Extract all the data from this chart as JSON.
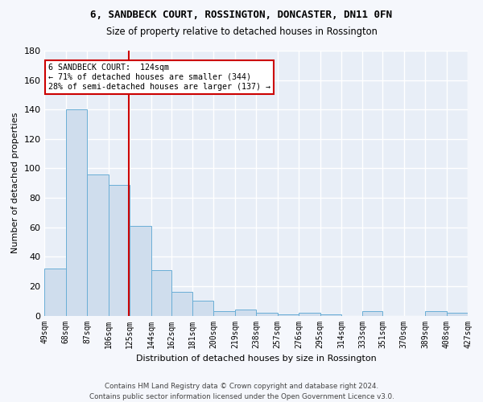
{
  "title": "6, SANDBECK COURT, ROSSINGTON, DONCASTER, DN11 0FN",
  "subtitle": "Size of property relative to detached houses in Rossington",
  "xlabel": "Distribution of detached houses by size in Rossington",
  "ylabel": "Number of detached properties",
  "bar_edges": [
    49,
    68,
    87,
    106,
    125,
    144,
    162,
    181,
    200,
    219,
    238,
    257,
    276,
    295,
    314,
    333,
    351,
    370,
    389,
    408,
    427
  ],
  "bar_heights": [
    32,
    140,
    96,
    89,
    61,
    31,
    16,
    10,
    3,
    4,
    2,
    1,
    2,
    1,
    0,
    3,
    0,
    0,
    3,
    2
  ],
  "bar_color": "#cfdded",
  "bar_edge_color": "#6aaed6",
  "property_size": 124,
  "vline_color": "#cc0000",
  "annotation_line1": "6 SANDBECK COURT:  124sqm",
  "annotation_line2": "← 71% of detached houses are smaller (344)",
  "annotation_line3": "28% of semi-detached houses are larger (137) →",
  "annotation_box_color": "#ffffff",
  "annotation_box_edge": "#cc0000",
  "ylim": [
    0,
    180
  ],
  "yticks": [
    0,
    20,
    40,
    60,
    80,
    100,
    120,
    140,
    160,
    180
  ],
  "bg_color": "#e8eef7",
  "grid_color": "#ffffff",
  "fig_bg": "#f5f7fc",
  "footer_full": "Contains HM Land Registry data © Crown copyright and database right 2024.\nContains public sector information licensed under the Open Government Licence v3.0."
}
